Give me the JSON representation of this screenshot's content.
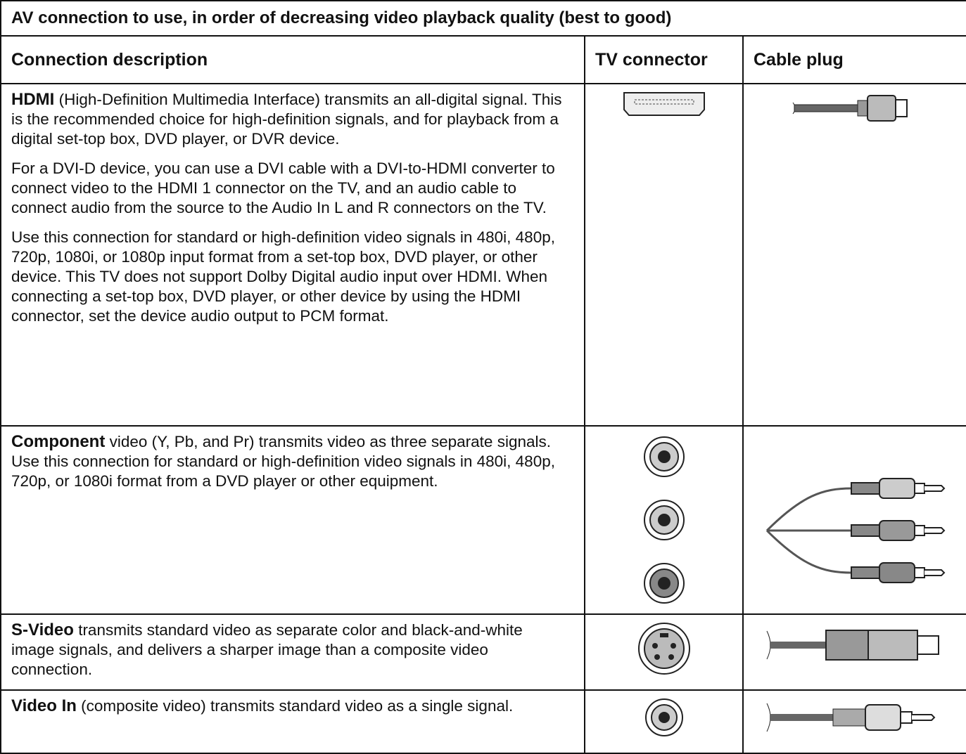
{
  "table": {
    "title": "AV connection to use, in order of decreasing video playback quality (best to good)",
    "headers": [
      "Connection description",
      "TV connector",
      "Cable plug"
    ],
    "rows": [
      {
        "lead": "HDMI",
        "paragraphs": [
          "(High-Definition Multimedia Interface) transmits an all-digital signal. This is the recommended choice for high-definition signals, and for playback from a digital set-top box, DVD player, or DVR device.",
          "For a DVI-D device, you can use a DVI cable with a DVI-to-HDMI converter to connect video to the HDMI 1 connector on the TV, and an audio cable to connect audio from the source to the Audio In L and R connectors on the TV.",
          "Use this connection for standard or high-definition video signals in 480i, 480p, 720p, 1080i, or 1080p input format from a set-top box, DVD player, or other device. This TV does not support Dolby Digital audio input over HDMI. When connecting a set-top box, DVD player, or other device by using the HDMI connector, set the device audio output to PCM format."
        ]
      },
      {
        "lead": "Component",
        "paragraphs": [
          "video (Y, Pb, and Pr) transmits video as three separate signals. Use this connection for standard or high-definition video signals in 480i, 480p, 720p, or 1080i format from a DVD player or other equipment."
        ]
      },
      {
        "lead": "S-Video",
        "paragraphs": [
          "transmits standard video as separate color and black-and-white image signals, and delivers a sharper image than a composite video connection."
        ]
      },
      {
        "lead": "Video In",
        "paragraphs": [
          "(composite video) transmits standard video as a single signal."
        ]
      }
    ]
  }
}
